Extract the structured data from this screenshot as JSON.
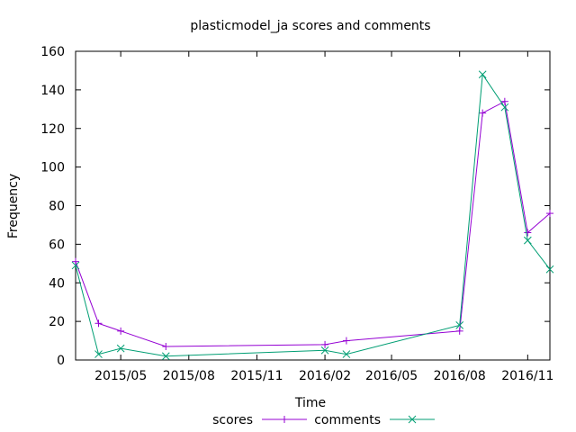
{
  "chart_data": {
    "type": "line",
    "title": "plasticmodel_ja scores and comments",
    "xlabel": "Time",
    "ylabel": "Frequency",
    "ylim": [
      0,
      160
    ],
    "yticks": [
      0,
      20,
      40,
      60,
      80,
      100,
      120,
      140,
      160
    ],
    "xlim": [
      "2015-03-01",
      "2016-12-01"
    ],
    "xticks": [
      {
        "date": "2015-05-01",
        "label": "2015/05"
      },
      {
        "date": "2015-08-01",
        "label": "2015/08"
      },
      {
        "date": "2015-11-01",
        "label": "2015/11"
      },
      {
        "date": "2016-02-01",
        "label": "2016/02"
      },
      {
        "date": "2016-05-01",
        "label": "2016/05"
      },
      {
        "date": "2016-08-01",
        "label": "2016/08"
      },
      {
        "date": "2016-11-01",
        "label": "2016/11"
      }
    ],
    "grid": false,
    "legend": "bottom",
    "series": [
      {
        "name": "scores",
        "color": "#9400d3",
        "marker": "+",
        "x": [
          "2015-03-01",
          "2015-04-01",
          "2015-05-01",
          "2015-07-01",
          "2016-02-01",
          "2016-03-01",
          "2016-08-01",
          "2016-09-01",
          "2016-10-01",
          "2016-11-01",
          "2016-12-01"
        ],
        "y": [
          51,
          19,
          15,
          7,
          8,
          10,
          15,
          128,
          134,
          66,
          76
        ]
      },
      {
        "name": "comments",
        "color": "#009e73",
        "marker": "x",
        "x": [
          "2015-03-01",
          "2015-04-01",
          "2015-05-01",
          "2015-07-01",
          "2016-02-01",
          "2016-03-01",
          "2016-08-01",
          "2016-09-01",
          "2016-10-01",
          "2016-11-01",
          "2016-12-01"
        ],
        "y": [
          49,
          3,
          6,
          2,
          5,
          3,
          18,
          148,
          131,
          62,
          47
        ]
      }
    ]
  }
}
